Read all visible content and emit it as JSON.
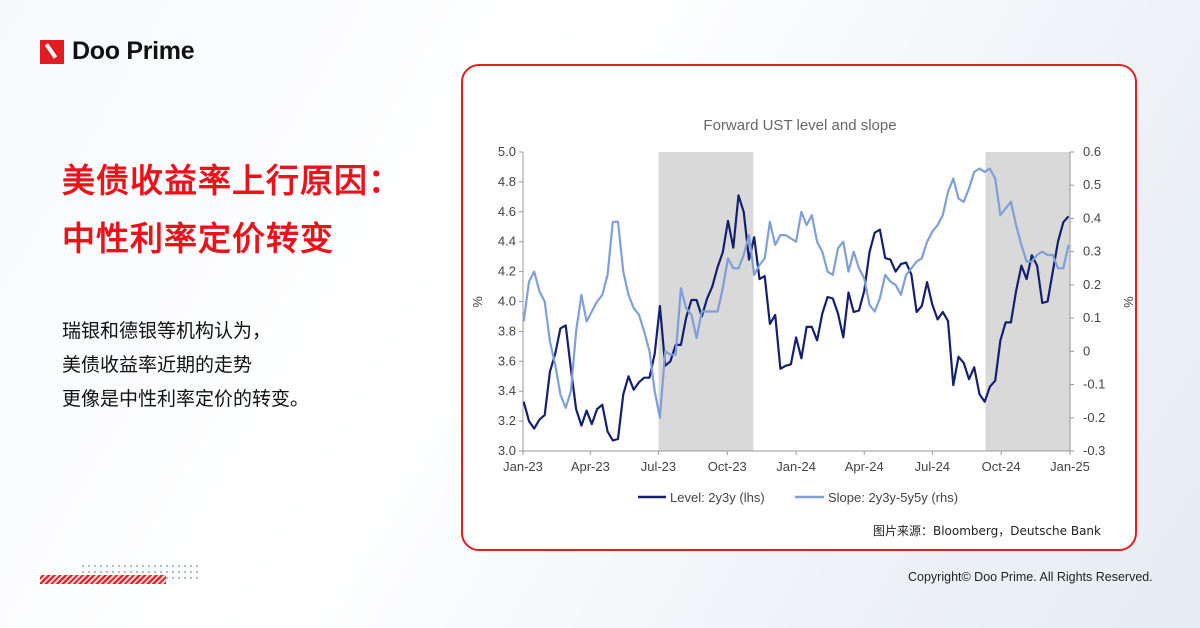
{
  "brand": {
    "name": "Doo Prime",
    "accent": "#e31b23"
  },
  "headline": {
    "line1": "美债收益率上行原因：",
    "line2": "中性利率定价转变"
  },
  "body": {
    "line1": "瑞银和德银等机构认为，",
    "line2": "美债收益率近期的走势",
    "line3": "更像是中性利率定价的转变。"
  },
  "source": "图片来源：Bloomberg，Deutsche Bank",
  "copyright": "Copyright© Doo Prime. All Rights Reserved.",
  "chart_data": {
    "type": "line",
    "title": "Forward UST level and slope",
    "ylabel_left": "%",
    "ylabel_right": "%",
    "ylim_left": [
      3.0,
      5.0
    ],
    "ylim_right": [
      -0.3,
      0.6
    ],
    "xlim": [
      "2023-01-01",
      "2025-01-01"
    ],
    "x_tick_labels": [
      "Jan-23",
      "Apr-23",
      "Jul-23",
      "Oct-23",
      "Jan-24",
      "Apr-24",
      "Jul-24",
      "Oct-24",
      "Jan-25"
    ],
    "x_ticks": [
      "2023-01-01",
      "2023-04-01",
      "2023-07-01",
      "2023-10-01",
      "2024-01-01",
      "2024-04-01",
      "2024-07-01",
      "2024-10-01",
      "2025-01-01"
    ],
    "y_ticks_left": [
      "3.0",
      "3.2",
      "3.4",
      "3.6",
      "3.8",
      "4.0",
      "4.2",
      "4.4",
      "4.6",
      "4.8",
      "5.0"
    ],
    "y_ticks_right": [
      "-0.3",
      "-0.2",
      "-0.1",
      "0",
      "0.1",
      "0.2",
      "0.3",
      "0.4",
      "0.5",
      "0.6"
    ],
    "grid": false,
    "legend": "bottom",
    "shaded_periods": [
      [
        "2023-07-01",
        "2023-11-05"
      ],
      [
        "2024-09-10",
        "2025-01-01"
      ]
    ],
    "x": [
      "2023-01-02",
      "2023-01-09",
      "2023-01-16",
      "2023-01-23",
      "2023-01-30",
      "2023-02-06",
      "2023-02-13",
      "2023-02-20",
      "2023-02-27",
      "2023-03-06",
      "2023-03-13",
      "2023-03-20",
      "2023-03-27",
      "2023-04-03",
      "2023-04-10",
      "2023-04-17",
      "2023-04-24",
      "2023-05-01",
      "2023-05-08",
      "2023-05-15",
      "2023-05-22",
      "2023-05-29",
      "2023-06-05",
      "2023-06-12",
      "2023-06-19",
      "2023-06-26",
      "2023-07-03",
      "2023-07-10",
      "2023-07-17",
      "2023-07-24",
      "2023-07-31",
      "2023-08-07",
      "2023-08-14",
      "2023-08-21",
      "2023-08-28",
      "2023-09-04",
      "2023-09-11",
      "2023-09-18",
      "2023-09-25",
      "2023-10-02",
      "2023-10-09",
      "2023-10-16",
      "2023-10-23",
      "2023-10-30",
      "2023-11-06",
      "2023-11-13",
      "2023-11-20",
      "2023-11-27",
      "2023-12-04",
      "2023-12-11",
      "2023-12-18",
      "2023-12-25",
      "2024-01-01",
      "2024-01-08",
      "2024-01-15",
      "2024-01-22",
      "2024-01-29",
      "2024-02-05",
      "2024-02-12",
      "2024-02-19",
      "2024-02-26",
      "2024-03-04",
      "2024-03-11",
      "2024-03-18",
      "2024-03-25",
      "2024-04-01",
      "2024-04-08",
      "2024-04-15",
      "2024-04-22",
      "2024-04-29",
      "2024-05-06",
      "2024-05-13",
      "2024-05-20",
      "2024-05-27",
      "2024-06-03",
      "2024-06-10",
      "2024-06-17",
      "2024-06-24",
      "2024-07-01",
      "2024-07-08",
      "2024-07-15",
      "2024-07-22",
      "2024-07-29",
      "2024-08-05",
      "2024-08-12",
      "2024-08-19",
      "2024-08-26",
      "2024-09-02",
      "2024-09-09",
      "2024-09-16",
      "2024-09-23",
      "2024-09-30",
      "2024-10-07",
      "2024-10-14",
      "2024-10-21",
      "2024-10-28",
      "2024-11-04",
      "2024-11-11",
      "2024-11-18",
      "2024-11-25",
      "2024-12-02",
      "2024-12-09",
      "2024-12-16",
      "2024-12-23",
      "2024-12-30"
    ],
    "series": [
      {
        "name": "Level: 2y3y (lhs)",
        "axis": "left",
        "color": "#14206e",
        "values": [
          3.33,
          3.2,
          3.15,
          3.21,
          3.24,
          3.53,
          3.65,
          3.82,
          3.84,
          3.55,
          3.28,
          3.17,
          3.27,
          3.18,
          3.28,
          3.31,
          3.13,
          3.07,
          3.08,
          3.38,
          3.5,
          3.41,
          3.46,
          3.49,
          3.49,
          3.65,
          3.97,
          3.57,
          3.6,
          3.71,
          3.71,
          3.89,
          4.01,
          4.01,
          3.9,
          4.02,
          4.1,
          4.23,
          4.33,
          4.54,
          4.36,
          4.71,
          4.6,
          4.28,
          4.43,
          4.15,
          4.17,
          3.85,
          3.91,
          3.55,
          3.57,
          3.58,
          3.76,
          3.62,
          3.83,
          3.83,
          3.74,
          3.92,
          4.03,
          4.02,
          3.92,
          3.76,
          4.06,
          3.93,
          3.94,
          4.07,
          4.33,
          4.46,
          4.48,
          4.29,
          4.28,
          4.2,
          4.25,
          4.26,
          4.18,
          3.93,
          3.97,
          4.13,
          3.98,
          3.88,
          3.93,
          3.87,
          3.44,
          3.63,
          3.59,
          3.48,
          3.56,
          3.38,
          3.33,
          3.43,
          3.47,
          3.74,
          3.86,
          3.86,
          4.07,
          4.24,
          4.15,
          4.31,
          4.24,
          3.99,
          4.0,
          4.2,
          4.4,
          4.53,
          4.57
        ]
      },
      {
        "name": "Slope: 2y3y-5y5y (rhs)",
        "axis": "right",
        "color": "#7f9fd8",
        "values": [
          0.09,
          0.21,
          0.24,
          0.18,
          0.15,
          0.03,
          -0.04,
          -0.13,
          -0.17,
          -0.12,
          0.06,
          0.17,
          0.09,
          0.12,
          0.15,
          0.17,
          0.23,
          0.39,
          0.39,
          0.24,
          0.17,
          0.13,
          0.11,
          0.06,
          0.0,
          -0.12,
          -0.2,
          0.0,
          -0.01,
          -0.01,
          0.19,
          0.13,
          0.11,
          0.04,
          0.12,
          0.12,
          0.12,
          0.12,
          0.19,
          0.28,
          0.25,
          0.25,
          0.29,
          0.35,
          0.23,
          0.26,
          0.28,
          0.39,
          0.32,
          0.35,
          0.35,
          0.34,
          0.33,
          0.42,
          0.38,
          0.41,
          0.33,
          0.3,
          0.24,
          0.23,
          0.31,
          0.33,
          0.24,
          0.3,
          0.25,
          0.22,
          0.14,
          0.12,
          0.16,
          0.23,
          0.21,
          0.2,
          0.17,
          0.23,
          0.25,
          0.27,
          0.28,
          0.33,
          0.36,
          0.38,
          0.41,
          0.48,
          0.52,
          0.46,
          0.45,
          0.49,
          0.54,
          0.55,
          0.54,
          0.55,
          0.52,
          0.41,
          0.43,
          0.45,
          0.38,
          0.32,
          0.27,
          0.27,
          0.29,
          0.3,
          0.29,
          0.29,
          0.25,
          0.25,
          0.32
        ]
      }
    ]
  }
}
